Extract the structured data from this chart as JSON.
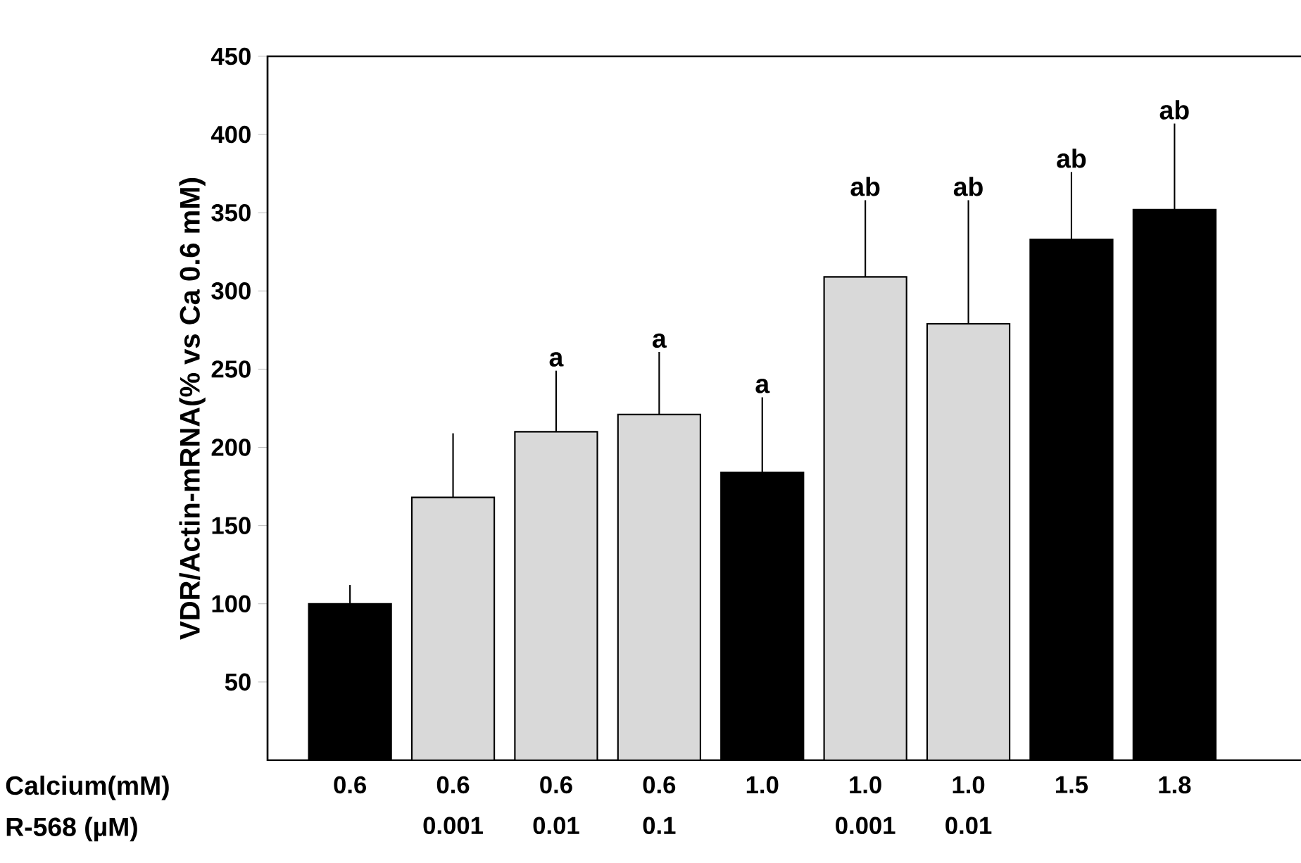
{
  "chart_data": {
    "type": "bar",
    "ylabel": "VDR/Actin-mRNA(% vs Ca 0.6 mM)",
    "categories": [
      "0.6",
      "0.6",
      "0.6",
      "0.6",
      "1.0",
      "1.0",
      "1.0",
      "1.5",
      "1.8"
    ],
    "values": [
      100,
      168,
      210,
      221,
      184,
      309,
      279,
      333,
      352
    ],
    "colors": [
      "#000000",
      "#d9d9d9",
      "#d9d9d9",
      "#d9d9d9",
      "#000000",
      "#d9d9d9",
      "#d9d9d9",
      "#000000",
      "#000000"
    ],
    "errors": [
      [
        100,
        112
      ],
      [
        168,
        209
      ],
      [
        210,
        249
      ],
      [
        221,
        261
      ],
      [
        184,
        232
      ],
      [
        309,
        358
      ],
      [
        279,
        358
      ],
      [
        333,
        376
      ],
      [
        352,
        407
      ]
    ],
    "ylim": [
      0,
      450
    ],
    "yticks": [
      50,
      100,
      150,
      200,
      250,
      300,
      350,
      400,
      450
    ],
    "annotations": [
      "Calcium(mM)",
      "R-568    (µM)",
      "0.001",
      "0.01",
      "0.1",
      "0.001",
      "0.01",
      "a",
      "a",
      "a",
      "ab",
      "ab",
      "ab",
      "ab"
    ]
  }
}
